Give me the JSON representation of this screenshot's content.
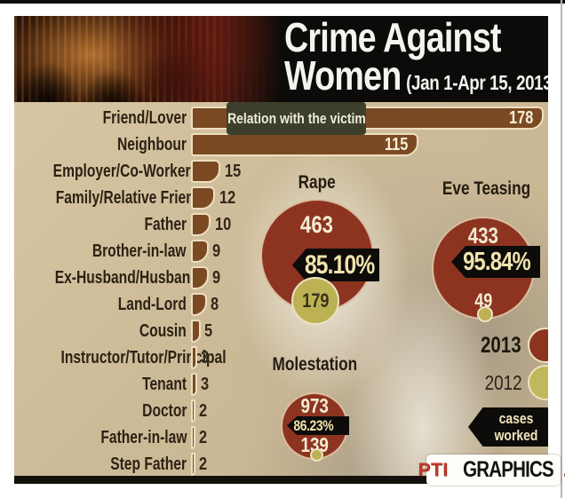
{
  "header": {
    "title_line1": "Crime Against",
    "title_line2": "Women",
    "subtitle": "(Jan 1-Apr 15, 2013)"
  },
  "bar_chart": {
    "callout": "Relation with the victim",
    "items": [
      {
        "label": "Friend/Lover",
        "value": 178
      },
      {
        "label": "Neighbour",
        "value": 115
      },
      {
        "label": "Employer/Co-Worker",
        "value": 15
      },
      {
        "label": "Family/Relative Friend",
        "value": 12
      },
      {
        "label": "Father",
        "value": 10
      },
      {
        "label": "Brother-in-law",
        "value": 9
      },
      {
        "label": "Ex-Husband/Husband",
        "value": 9
      },
      {
        "label": "Land-Lord",
        "value": 8
      },
      {
        "label": "Cousin",
        "value": 5
      },
      {
        "label": "Instructor/Tutor/Principal",
        "value": 3
      },
      {
        "label": "Tenant",
        "value": 3
      },
      {
        "label": "Doctor",
        "value": 2
      },
      {
        "label": "Father-in-law",
        "value": 2
      },
      {
        "label": "Step Father",
        "value": 2
      }
    ]
  },
  "circles": [
    {
      "title": "Rape",
      "value_2013": "463",
      "pct": "85.10%",
      "value_2012": "179"
    },
    {
      "title": "Eve Teasing",
      "value_2013": "433",
      "pct": "95.84%",
      "value_2012": "49"
    },
    {
      "title": "Molestation",
      "value_2013": "973",
      "pct": "86.23%",
      "value_2012": "139"
    }
  ],
  "legend": {
    "label_2013": "2013",
    "label_2012": "2012",
    "note_line1": "% of cases",
    "note_line2": "worked out"
  },
  "footer": {
    "brand": "PTI",
    "name": "GRAPHICS",
    "period": "."
  },
  "colors": {
    "tan_panel": "#cdbb98",
    "bar_brown": "#7b4a22",
    "maroon_2013": "#8d3420",
    "olive_2012": "#bcb254",
    "black_band": "#0d0c0a",
    "cream_text": "#f1e3ad",
    "dark_text": "#2c2113",
    "relation_box": "#3b3f2b",
    "pti_red": "#c0392b"
  },
  "chart_data": [
    {
      "type": "bar",
      "title": "Relation with the victim",
      "orientation": "horizontal",
      "categories": [
        "Friend/Lover",
        "Neighbour",
        "Employer/Co-Worker",
        "Family/Relative Friend",
        "Father",
        "Brother-in-law",
        "Ex-Husband/Husband",
        "Land-Lord",
        "Cousin",
        "Instructor/Tutor/Principal",
        "Tenant",
        "Doctor",
        "Father-in-law",
        "Step Father"
      ],
      "values": [
        178,
        115,
        15,
        12,
        10,
        9,
        9,
        8,
        5,
        3,
        3,
        2,
        2,
        2
      ],
      "xlim": [
        0,
        180
      ],
      "grid": false,
      "value_labels": true
    },
    {
      "type": "bubble",
      "title": "Crime Against Women (Jan 1-Apr 15, 2013)",
      "categories": [
        "Rape",
        "Eve Teasing",
        "Molestation"
      ],
      "series": [
        {
          "name": "2013",
          "values": [
            463,
            433,
            973
          ]
        },
        {
          "name": "2012",
          "values": [
            179,
            49,
            139
          ]
        }
      ],
      "annotations": {
        "worked_out_pct": [
          "85.10%",
          "95.84%",
          "86.23%"
        ],
        "note": "% of cases worked out"
      },
      "legend_position": "right"
    }
  ]
}
